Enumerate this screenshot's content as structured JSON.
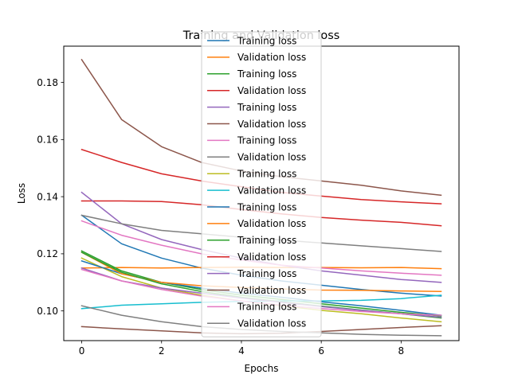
{
  "chart_data": {
    "type": "line",
    "title": "Training and Validation loss",
    "xlabel": "Epochs",
    "ylabel": "Loss",
    "x": [
      0,
      1,
      2,
      3,
      4,
      5,
      6,
      7,
      8,
      9
    ],
    "xlim": [
      -0.45,
      9.45
    ],
    "ylim": [
      0.0896,
      0.1927
    ],
    "xticks": [
      0,
      2,
      4,
      6,
      8
    ],
    "yticks": [
      0.1,
      0.12,
      0.14,
      0.16,
      0.18
    ],
    "ytick_labels": [
      "0.10",
      "0.12",
      "0.14",
      "0.16",
      "0.18"
    ],
    "grid": false,
    "legend_position": "upper-center",
    "series": [
      {
        "name": "Training loss",
        "color": "#1f77b4",
        "values": [
          0.1335,
          0.1235,
          0.1185,
          0.115,
          0.1125,
          0.1105,
          0.109,
          0.1075,
          0.1062,
          0.1052
        ]
      },
      {
        "name": "Validation loss",
        "color": "#ff7f0e",
        "values": [
          0.115,
          0.1152,
          0.115,
          0.1152,
          0.1153,
          0.1152,
          0.1152,
          0.1151,
          0.1152,
          0.1148
        ]
      },
      {
        "name": "Training loss",
        "color": "#2ca02c",
        "values": [
          0.121,
          0.114,
          0.11,
          0.1075,
          0.1055,
          0.104,
          0.1025,
          0.101,
          0.0995,
          0.0982
        ]
      },
      {
        "name": "Validation loss",
        "color": "#d62728",
        "values": [
          0.1385,
          0.1385,
          0.1383,
          0.1372,
          0.1355,
          0.134,
          0.1327,
          0.1318,
          0.131,
          0.1298
        ]
      },
      {
        "name": "Training loss",
        "color": "#9467bd",
        "values": [
          0.1415,
          0.1305,
          0.125,
          0.1215,
          0.1185,
          0.116,
          0.114,
          0.1125,
          0.111,
          0.11
        ]
      },
      {
        "name": "Validation loss",
        "color": "#8c564b",
        "values": [
          0.188,
          0.167,
          0.1575,
          0.152,
          0.149,
          0.147,
          0.1455,
          0.144,
          0.142,
          0.1405
        ]
      },
      {
        "name": "Training loss",
        "color": "#e377c2",
        "values": [
          0.1315,
          0.1265,
          0.123,
          0.12,
          0.1178,
          0.116,
          0.115,
          0.114,
          0.1132,
          0.1125
        ]
      },
      {
        "name": "Validation loss",
        "color": "#7f7f7f",
        "values": [
          0.1335,
          0.1305,
          0.1282,
          0.127,
          0.1258,
          0.1248,
          0.1238,
          0.1228,
          0.1218,
          0.1208
        ]
      },
      {
        "name": "Training loss",
        "color": "#bcbd22",
        "values": [
          0.1185,
          0.112,
          0.108,
          0.1055,
          0.1035,
          0.1018,
          0.1002,
          0.099,
          0.0975,
          0.0962
        ]
      },
      {
        "name": "Validation loss",
        "color": "#17becf",
        "values": [
          0.1008,
          0.102,
          0.1025,
          0.103,
          0.1033,
          0.1035,
          0.1035,
          0.1037,
          0.1043,
          0.1055
        ]
      },
      {
        "name": "Training loss",
        "color": "#1f77b4",
        "values": [
          0.1175,
          0.113,
          0.11,
          0.108,
          0.1062,
          0.1048,
          0.1032,
          0.1018,
          0.1002,
          0.0985
        ]
      },
      {
        "name": "Validation loss",
        "color": "#ff7f0e",
        "values": [
          0.1205,
          0.113,
          0.11,
          0.1088,
          0.1082,
          0.1077,
          0.1073,
          0.1072,
          0.107,
          0.1068
        ]
      },
      {
        "name": "Training loss",
        "color": "#2ca02c",
        "values": [
          0.1205,
          0.1135,
          0.1095,
          0.1068,
          0.1048,
          0.1032,
          0.1017,
          0.1003,
          0.099,
          0.0975
        ]
      },
      {
        "name": "Validation loss",
        "color": "#d62728",
        "values": [
          0.1565,
          0.152,
          0.148,
          0.1455,
          0.1435,
          0.1415,
          0.1402,
          0.139,
          0.1382,
          0.1375
        ]
      },
      {
        "name": "Training loss",
        "color": "#9467bd",
        "values": [
          0.115,
          0.1105,
          0.108,
          0.1062,
          0.1045,
          0.103,
          0.1015,
          0.1002,
          0.099,
          0.0978
        ]
      },
      {
        "name": "Validation loss",
        "color": "#8c564b",
        "values": [
          0.0945,
          0.0937,
          0.093,
          0.0923,
          0.092,
          0.0922,
          0.0928,
          0.0935,
          0.0942,
          0.0948
        ]
      },
      {
        "name": "Training loss",
        "color": "#e377c2",
        "values": [
          0.1145,
          0.1105,
          0.1075,
          0.1052,
          0.1035,
          0.102,
          0.1008,
          0.0998,
          0.099,
          0.0985
        ]
      },
      {
        "name": "Validation loss",
        "color": "#7f7f7f",
        "values": [
          0.1018,
          0.0985,
          0.0962,
          0.0945,
          0.0935,
          0.0928,
          0.0923,
          0.0918,
          0.0915,
          0.0913
        ]
      }
    ]
  }
}
